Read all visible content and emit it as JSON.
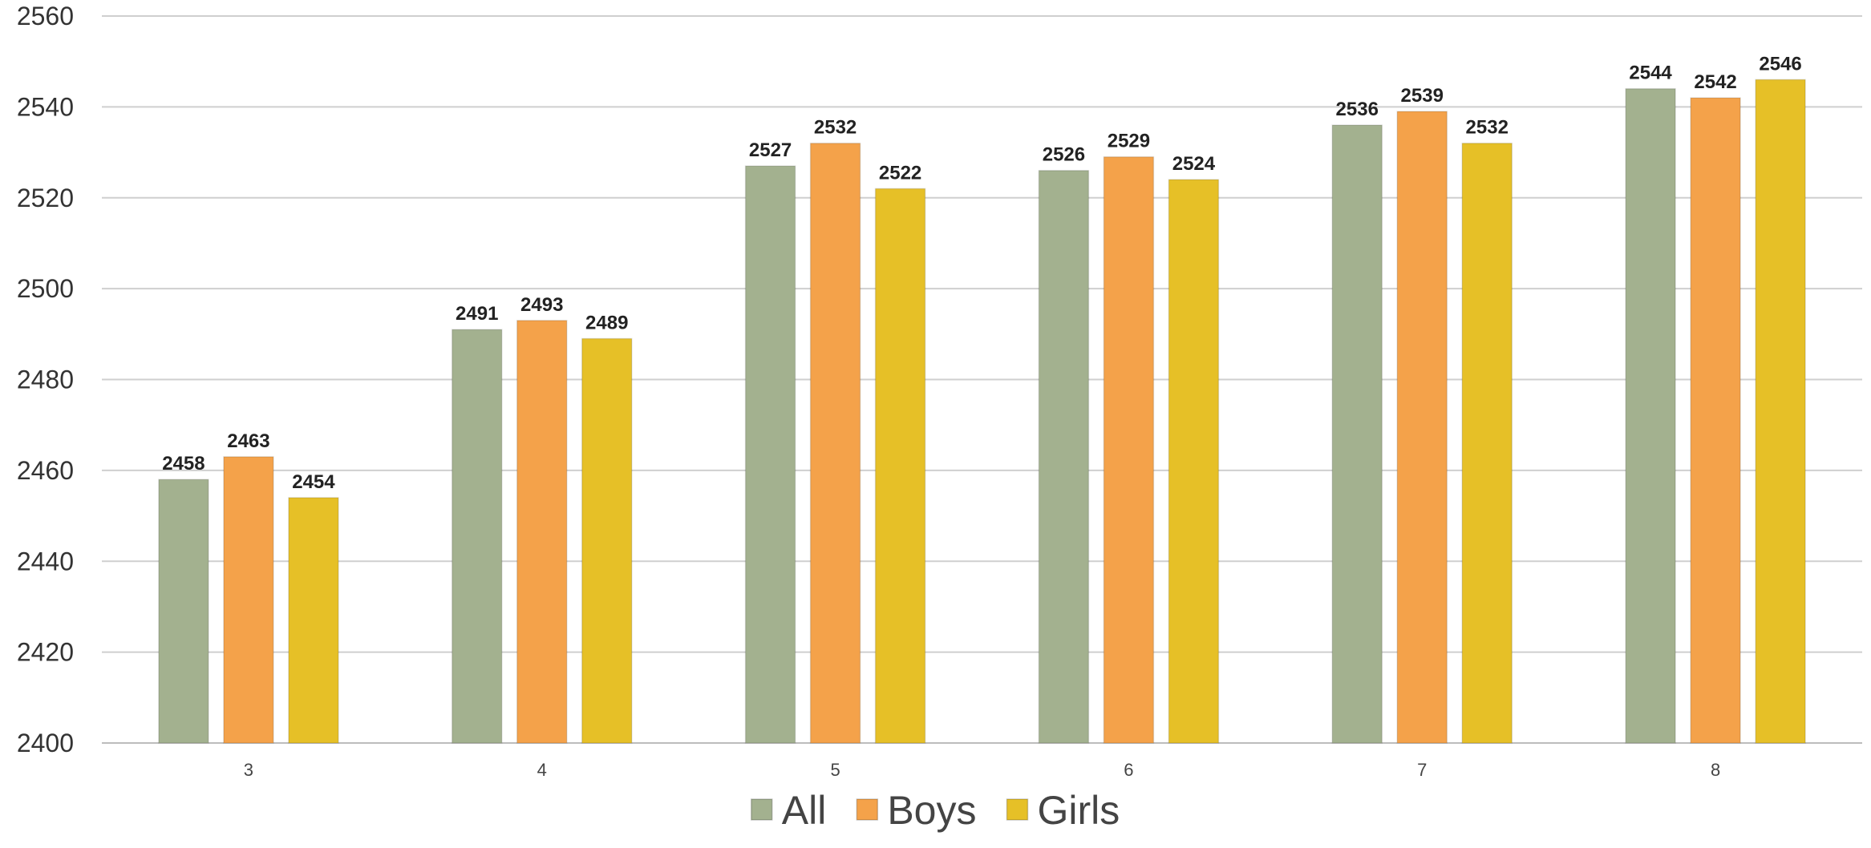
{
  "chart_data": {
    "type": "bar",
    "title": "",
    "xlabel": "",
    "ylabel": "",
    "ylim": [
      2400,
      2560
    ],
    "yticks": [
      2400,
      2420,
      2440,
      2460,
      2480,
      2500,
      2520,
      2540,
      2560
    ],
    "grid": true,
    "legend_position": "bottom",
    "categories": [
      "3",
      "4",
      "5",
      "6",
      "7",
      "8"
    ],
    "series": [
      {
        "name": "All",
        "color": "#a3b18f",
        "values": [
          2458,
          2491,
          2527,
          2526,
          2536,
          2544
        ]
      },
      {
        "name": "Boys",
        "color": "#f4a24a",
        "values": [
          2463,
          2493,
          2532,
          2529,
          2539,
          2542
        ]
      },
      {
        "name": "Girls",
        "color": "#e6c027",
        "values": [
          2454,
          2489,
          2522,
          2524,
          2532,
          2546
        ]
      }
    ]
  }
}
